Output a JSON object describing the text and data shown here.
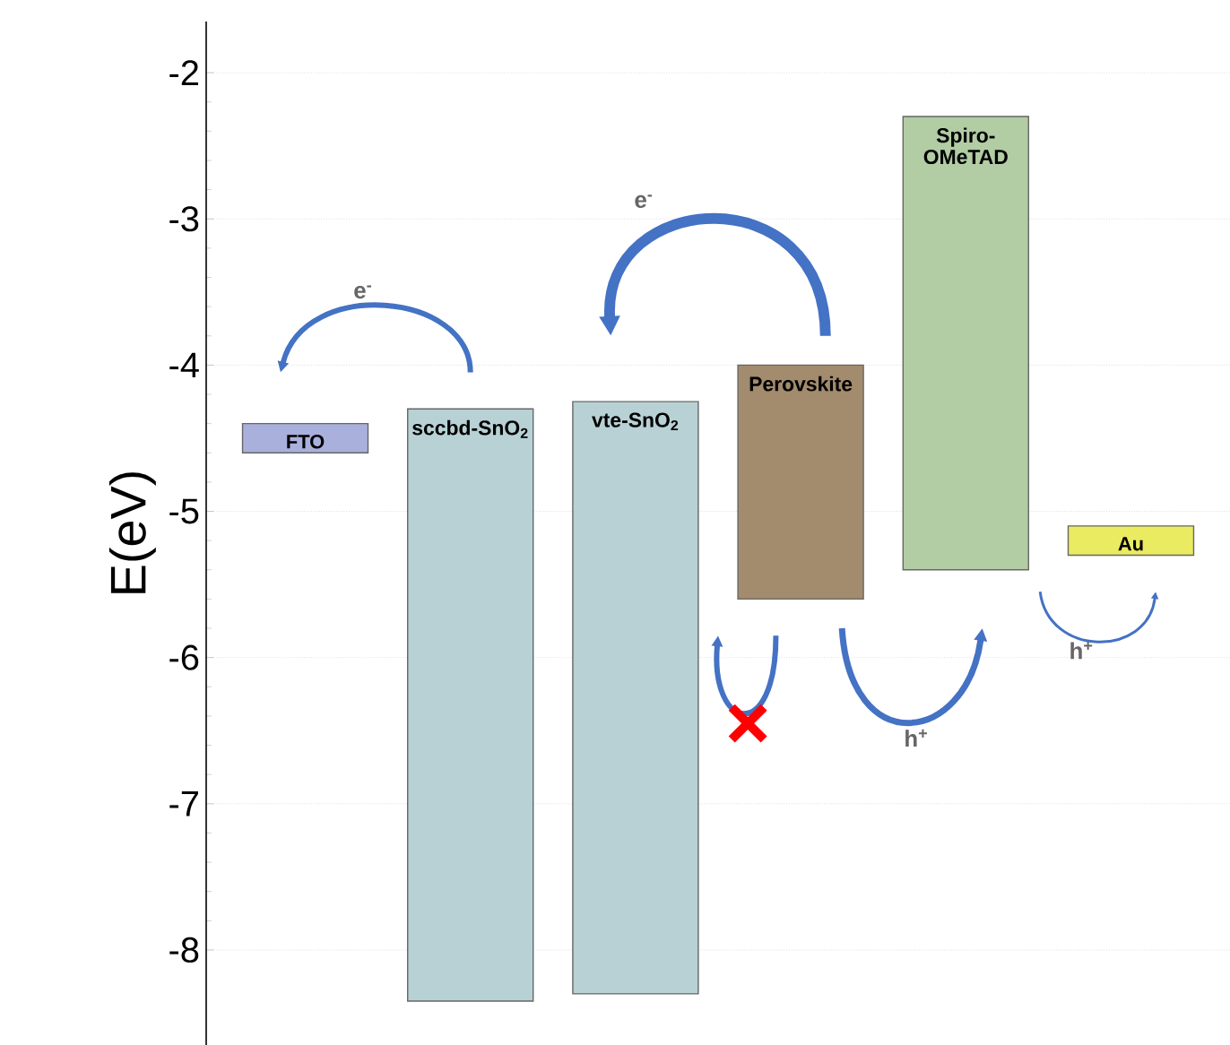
{
  "chart_data": {
    "type": "bar",
    "ylabel": "E(eV)",
    "categories": [
      "FTO",
      "sccbd-SnO$_{2}$",
      "vte-SnO$_{2}$",
      "Perovskite",
      "Spiro-OMeTAD",
      "Au"
    ],
    "base": [
      -4.6,
      -8.35,
      -8.3,
      -5.6,
      -5.4,
      -5.3
    ],
    "values": [
      0.2,
      4.05,
      4.05,
      1.6,
      3.1,
      0.2
    ],
    "colors": [
      "#aab0dc",
      "#b8d1d5",
      "#b8d1d5",
      "#a38b6d",
      "#b2cca4",
      "#ebeb62"
    ],
    "ylim": [
      -8.65,
      -1.65
    ],
    "yticks": [
      -2,
      -3,
      -4,
      -5,
      -6,
      -7,
      -8
    ],
    "grid": "y",
    "tick_labels": "y",
    "annotations": [
      "e$^{-}$",
      "e$^{-}$",
      "h$^{+}$",
      "h$^{+}$"
    ]
  }
}
